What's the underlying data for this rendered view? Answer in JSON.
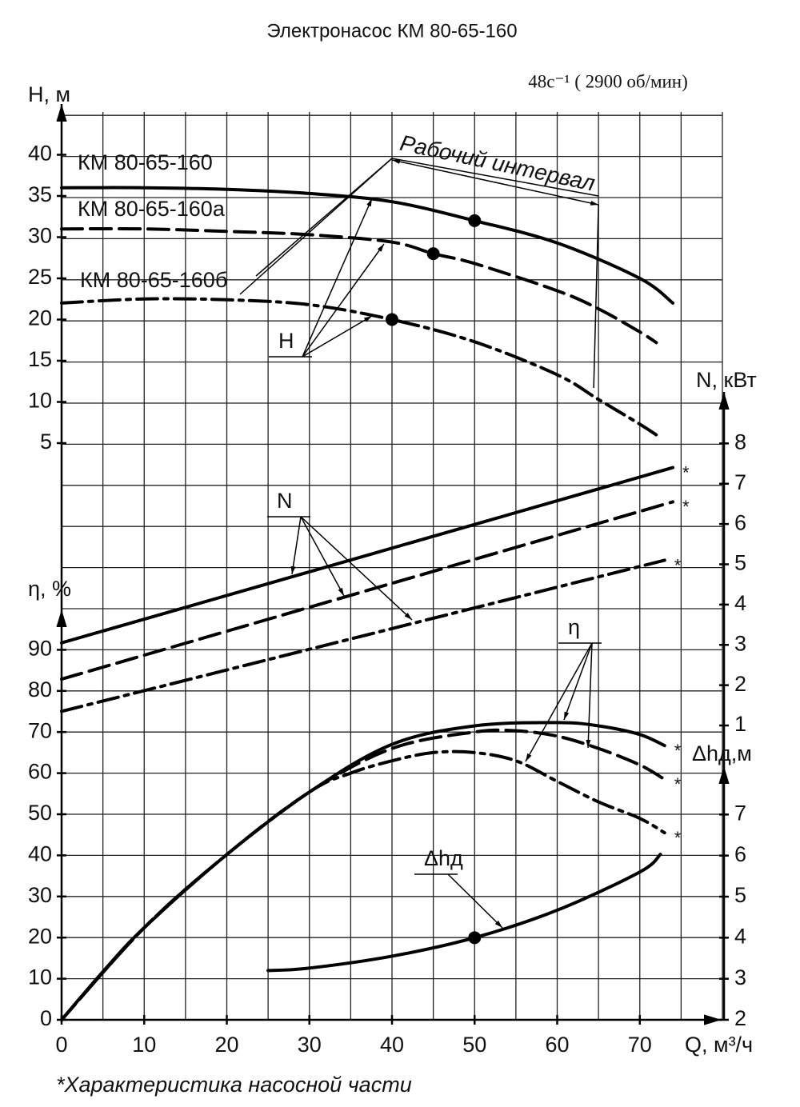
{
  "title": "Электронасос КМ 80-65-160",
  "speed": "48с⁻¹ ( 2900 об/мин)",
  "footnote": "*Характеристика насосной части",
  "chart_data": [
    {
      "type": "line",
      "y_label": "H, м",
      "x_label": "Q, м³/ч",
      "xlim": [
        0,
        80
      ],
      "xticks": [
        0,
        10,
        20,
        30,
        40,
        50,
        60,
        70
      ],
      "ylim": [
        5,
        45
      ],
      "yticks": [
        5,
        10,
        15,
        20,
        25,
        30,
        35,
        40
      ],
      "callout": "H",
      "interval": {
        "label": "Рабочий интервал",
        "range": [
          40,
          65
        ]
      },
      "series": [
        {
          "name": "КМ 80-65-160",
          "dash": "solid",
          "x": [
            0,
            10,
            20,
            30,
            40,
            50,
            60,
            70,
            74
          ],
          "values": [
            36,
            36,
            35.8,
            35.3,
            34.3,
            32,
            29.3,
            25,
            22
          ]
        },
        {
          "name": "КМ 80-65-160а",
          "dash": "dashed",
          "x": [
            0,
            10,
            20,
            30,
            40,
            45,
            50,
            60,
            65,
            70,
            72
          ],
          "values": [
            31,
            31,
            30.7,
            30.3,
            29.4,
            28,
            26.8,
            23.5,
            21.3,
            18.5,
            17.2
          ]
        },
        {
          "name": "КМ 80-65-160б",
          "dash": "dashdot",
          "x": [
            0,
            10,
            20,
            30,
            40,
            50,
            60,
            65,
            70,
            72
          ],
          "values": [
            22,
            22.5,
            22.4,
            21.8,
            20,
            17.3,
            13.3,
            10.3,
            7.3,
            6
          ]
        }
      ],
      "points": {
        "x": [
          50,
          45,
          40
        ],
        "values": [
          32,
          28,
          20
        ]
      }
    },
    {
      "type": "line",
      "y_label": "N, кВт",
      "ylim": [
        1,
        9
      ],
      "yticks": [
        1,
        2,
        3,
        4,
        5,
        6,
        7,
        8
      ],
      "callout": "N",
      "series": [
        {
          "dash": "solid",
          "note": "*",
          "x": [
            0,
            74
          ],
          "values": [
            3.05,
            7.4
          ]
        },
        {
          "dash": "dashed",
          "note": "*",
          "x": [
            0,
            74
          ],
          "values": [
            2.15,
            6.55
          ]
        },
        {
          "dash": "dashdot",
          "note": "*",
          "x": [
            0,
            73
          ],
          "values": [
            1.35,
            5.1
          ]
        }
      ]
    },
    {
      "type": "line",
      "y_label": "η, %",
      "ylim": [
        0,
        100
      ],
      "yticks": [
        0,
        10,
        20,
        30,
        40,
        50,
        60,
        70,
        80,
        90
      ],
      "callout": "η",
      "series": [
        {
          "dash": "dashdot",
          "note": "*",
          "x": [
            0,
            10,
            20,
            30,
            35,
            40,
            45,
            50,
            55,
            60,
            65,
            70,
            73
          ],
          "values": [
            0,
            22.4,
            40.2,
            55.4,
            60,
            63,
            65,
            65,
            63,
            58,
            53,
            49,
            45.5
          ]
        },
        {
          "dash": "dashed",
          "note": "*",
          "x": [
            0,
            10,
            20,
            30,
            40,
            50,
            55,
            60,
            65,
            70,
            73
          ],
          "values": [
            0,
            22.4,
            40.2,
            55.4,
            66,
            70,
            70.3,
            69,
            66,
            62,
            58.5
          ]
        },
        {
          "dash": "solid",
          "note": "*",
          "x": [
            0,
            5,
            10,
            20,
            30,
            40,
            50,
            60,
            65,
            70,
            73
          ],
          "values": [
            0,
            11.7,
            22.4,
            40.2,
            55.4,
            67,
            71.5,
            72.3,
            71.5,
            69.4,
            66.7
          ]
        }
      ]
    },
    {
      "type": "line",
      "y_label": "Δhд,м",
      "ylim": [
        2,
        8
      ],
      "yticks": [
        2,
        3,
        4,
        5,
        6,
        7
      ],
      "callout": "Δhд",
      "series": [
        {
          "dash": "solid",
          "x": [
            25,
            30,
            40,
            50,
            60,
            70,
            72.5
          ],
          "values": [
            3.2,
            3.26,
            3.55,
            4,
            4.67,
            5.6,
            6.03
          ]
        }
      ],
      "points": {
        "x": [
          50
        ],
        "values": [
          4
        ]
      }
    }
  ]
}
